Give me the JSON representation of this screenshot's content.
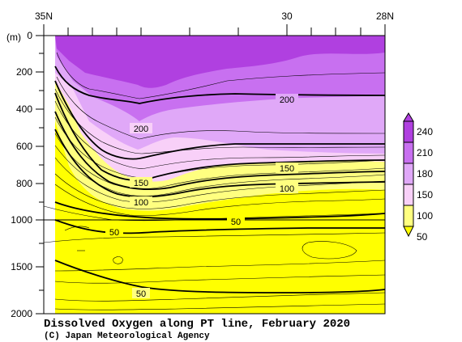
{
  "chart_data": {
    "type": "contour",
    "title": "Dissolved Oxygen along PT line, February 2020",
    "credit": "(C) Japan Meteorological Agency",
    "y_unit": "(m)",
    "x_ticks_top": [
      "35N",
      "30",
      "28N"
    ],
    "y_ticks": [
      "0",
      "200",
      "400",
      "600",
      "800",
      "1000",
      "1500",
      "2000"
    ],
    "contour_labels": [
      "200",
      "200",
      "150",
      "150",
      "100",
      "100",
      "50",
      "50",
      "50"
    ],
    "colorbar": {
      "labels": [
        "240",
        "210",
        "180",
        "150",
        "100",
        "50"
      ],
      "colors": [
        "#b040e0",
        "#c870f0",
        "#e0a8f8",
        "#f8d0f8",
        "#ffff80",
        "#ffff00"
      ]
    },
    "colors": {
      "deep_purple": "#b040e0",
      "purple": "#c870f0",
      "light_purple": "#e0a8f8",
      "pink": "#f8d0f8",
      "light_yellow": "#ffff80",
      "yellow": "#ffff00"
    }
  }
}
